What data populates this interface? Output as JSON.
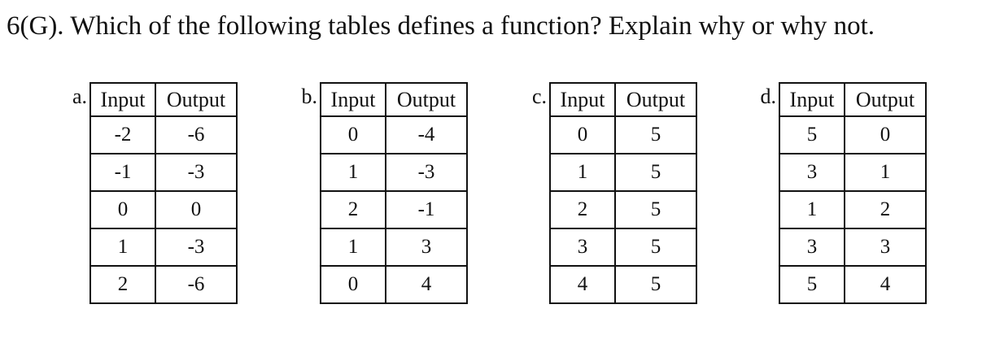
{
  "question": "6(G). Which of the following tables defines a function? Explain why or why not.",
  "tables": [
    {
      "label": "a.",
      "headers": [
        "Input",
        "Output"
      ],
      "rows": [
        [
          "-2",
          "-6"
        ],
        [
          "-1",
          "-3"
        ],
        [
          "0",
          "0"
        ],
        [
          "1",
          "-3"
        ],
        [
          "2",
          "-6"
        ]
      ]
    },
    {
      "label": "b.",
      "headers": [
        "Input",
        "Output"
      ],
      "rows": [
        [
          "0",
          "-4"
        ],
        [
          "1",
          "-3"
        ],
        [
          "2",
          "-1"
        ],
        [
          "1",
          "3"
        ],
        [
          "0",
          "4"
        ]
      ]
    },
    {
      "label": "c.",
      "headers": [
        "Input",
        "Output"
      ],
      "rows": [
        [
          "0",
          "5"
        ],
        [
          "1",
          "5"
        ],
        [
          "2",
          "5"
        ],
        [
          "3",
          "5"
        ],
        [
          "4",
          "5"
        ]
      ]
    },
    {
      "label": "d.",
      "headers": [
        "Input",
        "Output"
      ],
      "rows": [
        [
          "5",
          "0"
        ],
        [
          "3",
          "1"
        ],
        [
          "1",
          "2"
        ],
        [
          "3",
          "3"
        ],
        [
          "5",
          "4"
        ]
      ]
    }
  ]
}
